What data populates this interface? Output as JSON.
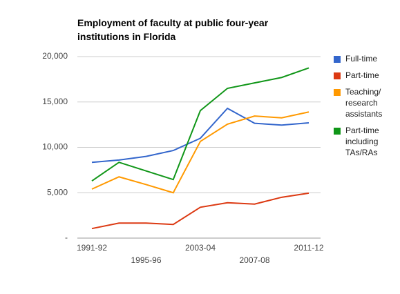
{
  "chart_data": {
    "type": "line",
    "title": "Employment of faculty at public four-year institutions in Florida",
    "categories": [
      "1991-92",
      null,
      "1995-96",
      null,
      "2003-04",
      null,
      "2007-08",
      null,
      "2011-12"
    ],
    "series": [
      {
        "name": "Full-time",
        "color": "#3366cc",
        "values": [
          8350,
          8600,
          9000,
          9650,
          11000,
          14300,
          12650,
          12450,
          12700
        ]
      },
      {
        "name": "Part-time",
        "color": "#dc3912",
        "values": [
          1050,
          1650,
          1650,
          1500,
          3400,
          3900,
          3750,
          4500,
          4950
        ]
      },
      {
        "name": "Teaching/ research assistants",
        "color": "#ff9900",
        "values": [
          5400,
          6750,
          5900,
          5000,
          10650,
          12550,
          13450,
          13250,
          13900
        ]
      },
      {
        "name": "Part-time including TAs/RAs",
        "color": "#109618",
        "values": [
          6300,
          8350,
          7400,
          6450,
          14050,
          16500,
          17100,
          17700,
          18750
        ]
      }
    ],
    "ylim": [
      0,
      20000
    ],
    "yticks": [
      {
        "value": 0,
        "label": "-"
      },
      {
        "value": 5000,
        "label": "5,000"
      },
      {
        "value": 10000,
        "label": "10,000"
      },
      {
        "value": 15000,
        "label": "15,000"
      },
      {
        "value": 20000,
        "label": "20,000"
      }
    ],
    "grid": true,
    "legend": "right"
  }
}
